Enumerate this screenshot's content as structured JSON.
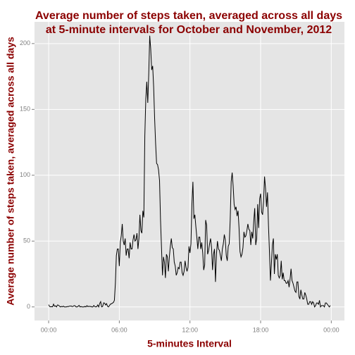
{
  "chart_data": {
    "type": "line",
    "title": "Average number of steps taken, averaged across all days\nat 5-minute intervals for October and November, 2012",
    "x_label": "5-minutes Interval",
    "y_label": "Average number of steps taken, averaged across all days",
    "xlim": [
      -72,
      1507
    ],
    "ylim": [
      -10.3,
      216.5
    ],
    "xticks": [
      {
        "value": 0,
        "label": "00:00"
      },
      {
        "value": 360,
        "label": "06:00"
      },
      {
        "value": 720,
        "label": "12:00"
      },
      {
        "value": 1080,
        "label": "18:00"
      },
      {
        "value": 1440,
        "label": "00:00"
      }
    ],
    "yticks": [
      0,
      50,
      100,
      150,
      200
    ],
    "grid": true,
    "x": [
      0,
      5,
      10,
      15,
      20,
      25,
      30,
      35,
      40,
      45,
      50,
      55,
      60,
      65,
      70,
      75,
      80,
      85,
      90,
      95,
      100,
      105,
      110,
      115,
      120,
      125,
      130,
      135,
      140,
      145,
      150,
      155,
      160,
      165,
      170,
      175,
      180,
      185,
      190,
      195,
      200,
      205,
      210,
      215,
      220,
      225,
      230,
      235,
      240,
      245,
      250,
      255,
      260,
      265,
      270,
      275,
      280,
      285,
      290,
      295,
      300,
      305,
      310,
      315,
      320,
      325,
      330,
      335,
      340,
      345,
      350,
      355,
      360,
      365,
      370,
      375,
      380,
      385,
      390,
      395,
      400,
      405,
      410,
      415,
      420,
      425,
      430,
      435,
      440,
      445,
      450,
      455,
      460,
      465,
      470,
      475,
      480,
      485,
      490,
      495,
      500,
      505,
      510,
      515,
      520,
      525,
      530,
      535,
      540,
      545,
      550,
      555,
      560,
      565,
      570,
      575,
      580,
      585,
      590,
      595,
      600,
      605,
      610,
      615,
      620,
      625,
      630,
      635,
      640,
      645,
      650,
      655,
      660,
      665,
      670,
      675,
      680,
      685,
      690,
      695,
      700,
      705,
      710,
      715,
      720,
      725,
      730,
      735,
      740,
      745,
      750,
      755,
      760,
      765,
      770,
      775,
      780,
      785,
      790,
      795,
      800,
      805,
      810,
      815,
      820,
      825,
      830,
      835,
      840,
      845,
      850,
      855,
      860,
      865,
      870,
      875,
      880,
      885,
      890,
      895,
      900,
      905,
      910,
      915,
      920,
      925,
      930,
      935,
      940,
      945,
      950,
      955,
      960,
      965,
      970,
      975,
      980,
      985,
      990,
      995,
      1000,
      1005,
      1010,
      1015,
      1020,
      1025,
      1030,
      1035,
      1040,
      1045,
      1050,
      1055,
      1060,
      1065,
      1070,
      1075,
      1080,
      1085,
      1090,
      1095,
      1100,
      1105,
      1110,
      1115,
      1120,
      1125,
      1130,
      1135,
      1140,
      1145,
      1150,
      1155,
      1160,
      1165,
      1170,
      1175,
      1180,
      1185,
      1190,
      1195,
      1200,
      1205,
      1210,
      1215,
      1220,
      1225,
      1230,
      1235,
      1240,
      1245,
      1250,
      1255,
      1260,
      1265,
      1270,
      1275,
      1280,
      1285,
      1290,
      1295,
      1300,
      1305,
      1310,
      1315,
      1320,
      1325,
      1330,
      1335,
      1340,
      1345,
      1350,
      1355,
      1360,
      1365,
      1370,
      1375,
      1380,
      1385,
      1390,
      1395,
      1400,
      1405,
      1410,
      1415,
      1420,
      1425,
      1430,
      1435
    ],
    "series": [
      {
        "color": "#000000",
        "values": [
          1.7,
          0.3,
          0.1,
          0.2,
          0.1,
          2.1,
          0.5,
          0.8,
          0,
          1.5,
          1.3,
          0.6,
          0,
          0.4,
          0.1,
          0.6,
          0,
          0,
          0,
          0.3,
          0.2,
          0.6,
          0.6,
          0.7,
          0.2,
          0.5,
          1.0,
          0.8,
          0,
          0,
          0.5,
          1.2,
          0,
          0.3,
          0,
          0,
          0,
          0.4,
          0,
          1,
          0.2,
          0.5,
          0.3,
          0.4,
          0,
          0,
          1.1,
          0.3,
          0,
          0.2,
          1.5,
          0,
          2.6,
          4.0,
          0,
          0.3,
          3.1,
          2.9,
          1.5,
          2.5,
          0.5,
          0,
          1.1,
          2.1,
          2.4,
          2.9,
          3.4,
          5,
          18,
          39,
          44,
          44,
          31,
          49,
          54,
          63,
          50,
          47,
          52,
          39,
          44,
          44,
          37,
          49,
          44,
          44,
          51,
          55,
          50,
          51,
          56,
          44,
          52,
          70,
          58,
          56,
          73,
          68,
          130,
          158,
          171,
          155,
          177,
          206,
          196,
          180,
          183,
          167,
          143,
          124,
          109,
          108,
          104,
          96,
          66,
          45,
          24,
          38,
          34,
          22,
          40,
          38,
          27,
          38,
          46,
          52,
          45,
          44,
          34,
          31,
          24,
          26,
          30,
          29,
          34,
          34,
          26,
          24,
          27,
          35,
          30,
          27,
          30,
          46,
          41,
          48,
          78,
          95,
          67,
          70,
          61,
          53,
          44,
          53,
          53,
          44,
          49,
          41,
          28,
          32,
          66,
          62,
          40,
          43,
          48,
          52,
          45,
          28,
          40,
          44,
          19,
          40,
          50,
          44,
          43,
          39,
          35,
          44,
          48,
          55,
          51,
          39,
          35,
          46,
          48,
          66,
          95,
          102,
          92,
          78,
          74,
          76,
          69,
          73,
          60,
          42,
          38,
          40,
          45,
          57,
          53,
          54,
          58,
          63,
          59,
          58,
          47,
          57,
          52,
          65,
          75,
          47,
          52,
          78,
          60,
          82,
          86,
          72,
          70,
          80,
          99,
          90,
          76,
          87,
          62,
          42,
          20,
          33,
          47,
          52,
          25,
          40,
          36,
          40,
          24,
          22,
          24,
          35,
          21,
          26,
          20,
          20,
          18,
          18,
          20,
          15,
          21,
          29,
          20,
          18,
          15,
          12,
          11,
          19,
          19,
          8,
          6,
          13,
          9,
          6,
          6,
          11,
          9,
          6,
          2,
          2,
          4,
          4,
          2,
          4,
          3,
          0,
          1,
          3,
          3,
          2,
          5,
          0,
          1,
          1,
          1,
          0,
          3,
          3,
          2,
          1,
          0,
          1.1
        ]
      }
    ]
  }
}
